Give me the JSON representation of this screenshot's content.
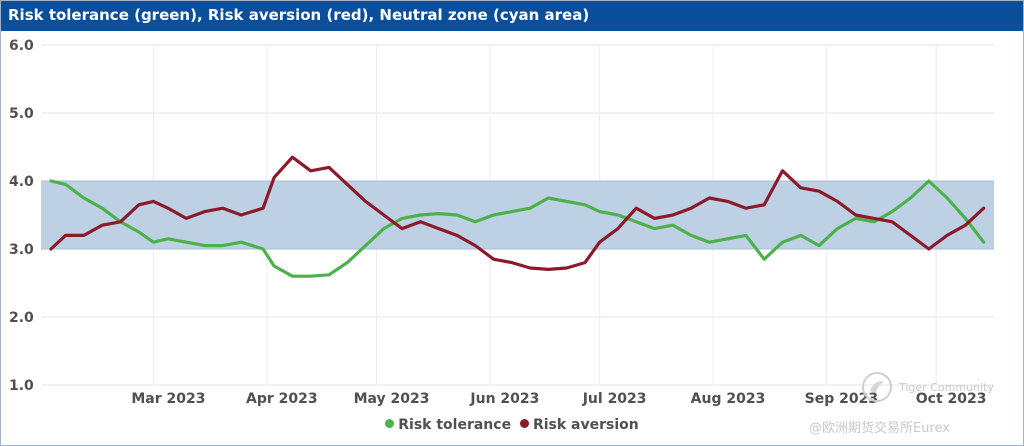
{
  "title": "Risk tolerance (green), Risk aversion (red), Neutral zone (cyan area)",
  "legend": [
    {
      "label": "Risk tolerance",
      "color": "#4db14b"
    },
    {
      "label": "Risk aversion",
      "color": "#8b1a2b"
    }
  ],
  "watermark": {
    "line1": "Tiger Community",
    "line2": "@欧洲期货交易所Eurex"
  },
  "chart_data": {
    "type": "line",
    "title": "Risk tolerance (green), Risk aversion (red), Neutral zone (cyan area)",
    "xlabel": "",
    "ylabel": "",
    "ylim": [
      1.0,
      6.0
    ],
    "yticks": [
      "1.0",
      "2.0",
      "3.0",
      "4.0",
      "5.0",
      "6.0"
    ],
    "xticks": [
      "Mar 2023",
      "Apr 2023",
      "May 2023",
      "Jun 2023",
      "Jul 2023",
      "Aug 2023",
      "Sep 2023",
      "Oct 2023"
    ],
    "xtick_dates": [
      "2023-03-01",
      "2023-04-01",
      "2023-05-01",
      "2023-06-01",
      "2023-07-01",
      "2023-08-01",
      "2023-09-01",
      "2023-10-01"
    ],
    "neutral_zone": {
      "from": 3.0,
      "to": 4.0,
      "color": "#bdd0e4"
    },
    "grid": true,
    "legend_position": "bottom",
    "series": [
      {
        "name": "Risk tolerance",
        "color": "#4db14b",
        "x": [
          "2023-02-01",
          "2023-02-05",
          "2023-02-10",
          "2023-02-15",
          "2023-02-20",
          "2023-02-25",
          "2023-03-01",
          "2023-03-05",
          "2023-03-10",
          "2023-03-15",
          "2023-03-20",
          "2023-03-25",
          "2023-03-31",
          "2023-04-03",
          "2023-04-08",
          "2023-04-13",
          "2023-04-18",
          "2023-04-23",
          "2023-04-28",
          "2023-05-03",
          "2023-05-08",
          "2023-05-13",
          "2023-05-18",
          "2023-05-23",
          "2023-05-28",
          "2023-06-02",
          "2023-06-07",
          "2023-06-12",
          "2023-06-17",
          "2023-06-22",
          "2023-06-27",
          "2023-07-01",
          "2023-07-06",
          "2023-07-11",
          "2023-07-16",
          "2023-07-21",
          "2023-07-26",
          "2023-07-31",
          "2023-08-05",
          "2023-08-10",
          "2023-08-15",
          "2023-08-20",
          "2023-08-25",
          "2023-08-30",
          "2023-09-04",
          "2023-09-09",
          "2023-09-14",
          "2023-09-19",
          "2023-09-24",
          "2023-09-29",
          "2023-10-04",
          "2023-10-09",
          "2023-10-14"
        ],
        "values": [
          4.0,
          3.95,
          3.75,
          3.6,
          3.4,
          3.25,
          3.1,
          3.15,
          3.1,
          3.05,
          3.05,
          3.1,
          3.0,
          2.75,
          2.6,
          2.6,
          2.62,
          2.8,
          3.05,
          3.3,
          3.45,
          3.5,
          3.52,
          3.5,
          3.4,
          3.5,
          3.55,
          3.6,
          3.75,
          3.7,
          3.65,
          3.55,
          3.5,
          3.4,
          3.3,
          3.35,
          3.2,
          3.1,
          3.15,
          3.2,
          2.85,
          3.1,
          3.2,
          3.05,
          3.3,
          3.45,
          3.4,
          3.55,
          3.75,
          4.0,
          3.75,
          3.45,
          3.1
        ]
      },
      {
        "name": "Risk aversion",
        "color": "#8b1a2b",
        "x": [
          "2023-02-01",
          "2023-02-05",
          "2023-02-10",
          "2023-02-15",
          "2023-02-20",
          "2023-02-25",
          "2023-03-01",
          "2023-03-05",
          "2023-03-10",
          "2023-03-15",
          "2023-03-20",
          "2023-03-25",
          "2023-03-31",
          "2023-04-03",
          "2023-04-08",
          "2023-04-13",
          "2023-04-18",
          "2023-04-23",
          "2023-04-28",
          "2023-05-03",
          "2023-05-08",
          "2023-05-13",
          "2023-05-18",
          "2023-05-23",
          "2023-05-28",
          "2023-06-02",
          "2023-06-07",
          "2023-06-12",
          "2023-06-17",
          "2023-06-22",
          "2023-06-27",
          "2023-07-01",
          "2023-07-06",
          "2023-07-11",
          "2023-07-16",
          "2023-07-21",
          "2023-07-26",
          "2023-07-31",
          "2023-08-05",
          "2023-08-10",
          "2023-08-15",
          "2023-08-20",
          "2023-08-25",
          "2023-08-30",
          "2023-09-04",
          "2023-09-09",
          "2023-09-14",
          "2023-09-19",
          "2023-09-24",
          "2023-09-29",
          "2023-10-04",
          "2023-10-09",
          "2023-10-14"
        ],
        "values": [
          3.0,
          3.2,
          3.2,
          3.35,
          3.4,
          3.65,
          3.7,
          3.6,
          3.45,
          3.55,
          3.6,
          3.5,
          3.6,
          4.05,
          4.35,
          4.15,
          4.2,
          3.95,
          3.7,
          3.5,
          3.3,
          3.4,
          3.3,
          3.2,
          3.05,
          2.85,
          2.8,
          2.72,
          2.7,
          2.72,
          2.8,
          3.1,
          3.3,
          3.6,
          3.45,
          3.5,
          3.6,
          3.75,
          3.7,
          3.6,
          3.65,
          4.15,
          3.9,
          3.85,
          3.7,
          3.5,
          3.45,
          3.4,
          3.2,
          3.0,
          3.2,
          3.35,
          3.6
        ]
      }
    ]
  }
}
